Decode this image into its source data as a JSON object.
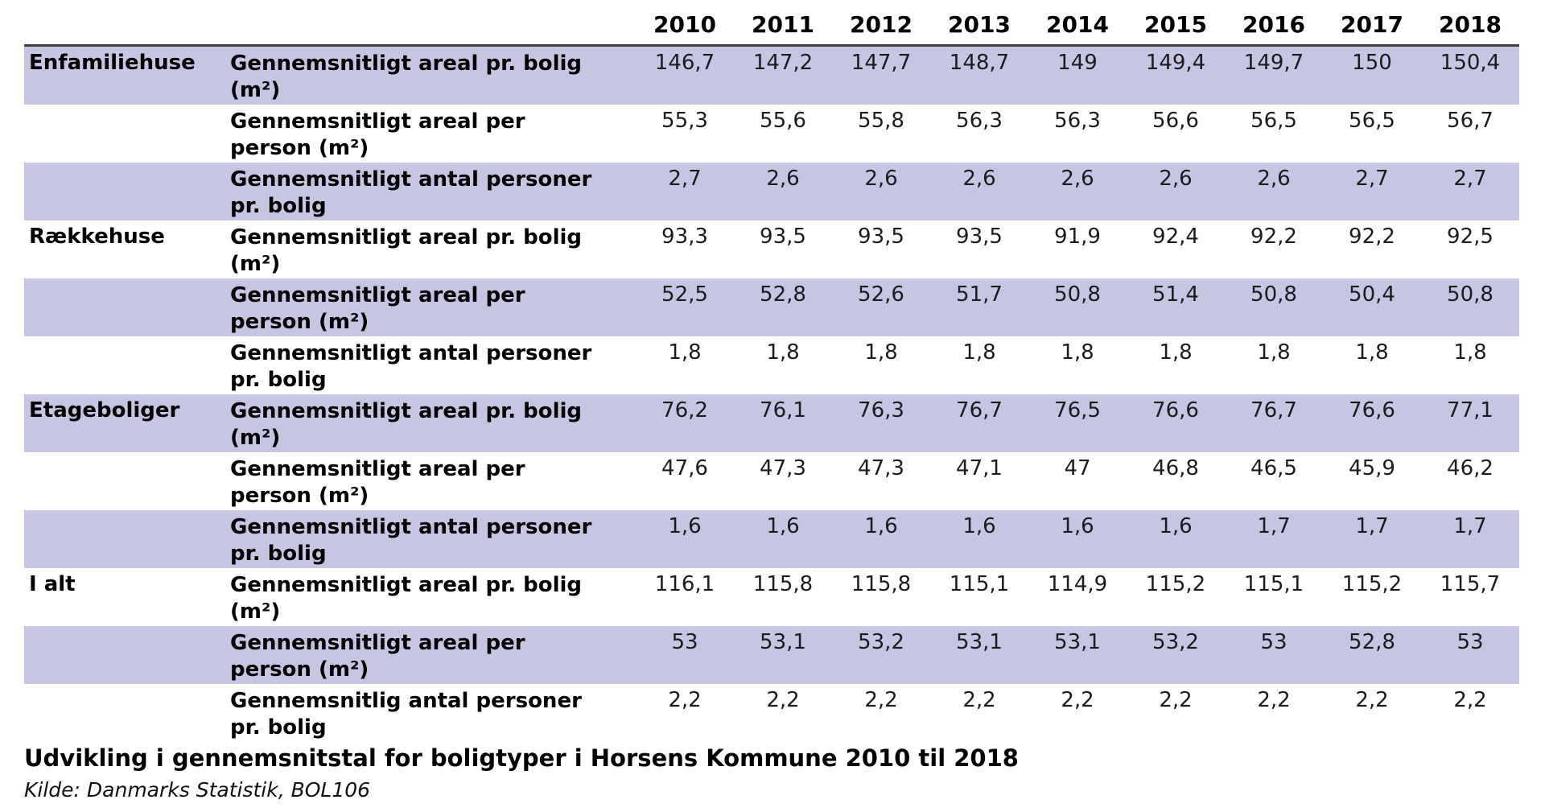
{
  "colors": {
    "row_shade": "#c6c6e2",
    "header_rule": "#3f3f3f",
    "text": "#000000",
    "background": "#ffffff"
  },
  "table": {
    "year_headers": [
      "2010",
      "2011",
      "2012",
      "2013",
      "2014",
      "2015",
      "2016",
      "2017",
      "2018"
    ],
    "rows": [
      {
        "group": "Enfamiliehuse",
        "label_lines": [
          "Gennemsnitligt areal pr. bolig",
          "(m²)"
        ],
        "shaded": true,
        "values": [
          "146,7",
          "147,2",
          "147,7",
          "148,7",
          "149",
          "149,4",
          "149,7",
          "150",
          "150,4"
        ]
      },
      {
        "group": "",
        "label_lines": [
          "Gennemsnitligt areal per",
          "person (m²)"
        ],
        "shaded": false,
        "values": [
          "55,3",
          "55,6",
          "55,8",
          "56,3",
          "56,3",
          "56,6",
          "56,5",
          "56,5",
          "56,7"
        ]
      },
      {
        "group": "",
        "label_lines": [
          "Gennemsnitligt antal personer",
          "pr. bolig"
        ],
        "shaded": true,
        "values": [
          "2,7",
          "2,6",
          "2,6",
          "2,6",
          "2,6",
          "2,6",
          "2,6",
          "2,7",
          "2,7"
        ]
      },
      {
        "group": "Rækkehuse",
        "label_lines": [
          "Gennemsnitligt areal pr. bolig",
          "(m²)"
        ],
        "shaded": false,
        "values": [
          "93,3",
          "93,5",
          "93,5",
          "93,5",
          "91,9",
          "92,4",
          "92,2",
          "92,2",
          "92,5"
        ]
      },
      {
        "group": "",
        "label_lines": [
          "Gennemsnitligt areal per",
          "person (m²)"
        ],
        "shaded": true,
        "values": [
          "52,5",
          "52,8",
          "52,6",
          "51,7",
          "50,8",
          "51,4",
          "50,8",
          "50,4",
          "50,8"
        ]
      },
      {
        "group": "",
        "label_lines": [
          "Gennemsnitligt antal personer",
          "pr. bolig"
        ],
        "shaded": false,
        "values": [
          "1,8",
          "1,8",
          "1,8",
          "1,8",
          "1,8",
          "1,8",
          "1,8",
          "1,8",
          "1,8"
        ]
      },
      {
        "group": "Etageboliger",
        "label_lines": [
          "Gennemsnitligt areal pr. bolig",
          "(m²)"
        ],
        "shaded": true,
        "values": [
          "76,2",
          "76,1",
          "76,3",
          "76,7",
          "76,5",
          "76,6",
          "76,7",
          "76,6",
          "77,1"
        ]
      },
      {
        "group": "",
        "label_lines": [
          "Gennemsnitligt areal per",
          "person (m²)"
        ],
        "shaded": false,
        "values": [
          "47,6",
          "47,3",
          "47,3",
          "47,1",
          "47",
          "46,8",
          "46,5",
          "45,9",
          "46,2"
        ]
      },
      {
        "group": "",
        "label_lines": [
          "Gennemsnitligt antal personer",
          "pr. bolig"
        ],
        "shaded": true,
        "values": [
          "1,6",
          "1,6",
          "1,6",
          "1,6",
          "1,6",
          "1,6",
          "1,7",
          "1,7",
          "1,7"
        ]
      },
      {
        "group": "I alt",
        "label_lines": [
          "Gennemsnitligt areal pr. bolig",
          "(m²)"
        ],
        "shaded": false,
        "values": [
          "116,1",
          "115,8",
          "115,8",
          "115,1",
          "114,9",
          "115,2",
          "115,1",
          "115,2",
          "115,7"
        ]
      },
      {
        "group": "",
        "label_lines": [
          "Gennemsnitligt areal per",
          "person (m²)"
        ],
        "shaded": true,
        "values": [
          "53",
          "53,1",
          "53,2",
          "53,1",
          "53,1",
          "53,2",
          "53",
          "52,8",
          "53"
        ]
      },
      {
        "group": "",
        "label_lines": [
          "Gennemsnitlig antal personer",
          "pr. bolig"
        ],
        "shaded": false,
        "values": [
          "2,2",
          "2,2",
          "2,2",
          "2,2",
          "2,2",
          "2,2",
          "2,2",
          "2,2",
          "2,2"
        ]
      }
    ]
  },
  "caption": {
    "title": "Udvikling i gennemsnitstal for boligtyper i Horsens Kommune 2010 til 2018",
    "source": "Kilde: Danmarks Statistik, BOL106"
  },
  "chart_data": {
    "type": "table",
    "title": "Udvikling i gennemsnitstal for boligtyper i Horsens Kommune 2010 til 2018",
    "source": "Kilde: Danmarks Statistik, BOL106",
    "x": [
      2010,
      2011,
      2012,
      2013,
      2014,
      2015,
      2016,
      2017,
      2018
    ],
    "series": [
      {
        "name": "Enfamiliehuse – Gennemsnitligt areal pr. bolig (m²)",
        "values": [
          146.7,
          147.2,
          147.7,
          148.7,
          149,
          149.4,
          149.7,
          150,
          150.4
        ]
      },
      {
        "name": "Enfamiliehuse – Gennemsnitligt areal per person (m²)",
        "values": [
          55.3,
          55.6,
          55.8,
          56.3,
          56.3,
          56.6,
          56.5,
          56.5,
          56.7
        ]
      },
      {
        "name": "Enfamiliehuse – Gennemsnitligt antal personer pr. bolig",
        "values": [
          2.7,
          2.6,
          2.6,
          2.6,
          2.6,
          2.6,
          2.6,
          2.7,
          2.7
        ]
      },
      {
        "name": "Rækkehuse – Gennemsnitligt areal pr. bolig (m²)",
        "values": [
          93.3,
          93.5,
          93.5,
          93.5,
          91.9,
          92.4,
          92.2,
          92.2,
          92.5
        ]
      },
      {
        "name": "Rækkehuse – Gennemsnitligt areal per person (m²)",
        "values": [
          52.5,
          52.8,
          52.6,
          51.7,
          50.8,
          51.4,
          50.8,
          50.4,
          50.8
        ]
      },
      {
        "name": "Rækkehuse – Gennemsnitligt antal personer pr. bolig",
        "values": [
          1.8,
          1.8,
          1.8,
          1.8,
          1.8,
          1.8,
          1.8,
          1.8,
          1.8
        ]
      },
      {
        "name": "Etageboliger – Gennemsnitligt areal pr. bolig (m²)",
        "values": [
          76.2,
          76.1,
          76.3,
          76.7,
          76.5,
          76.6,
          76.7,
          76.6,
          77.1
        ]
      },
      {
        "name": "Etageboliger – Gennemsnitligt areal per person (m²)",
        "values": [
          47.6,
          47.3,
          47.3,
          47.1,
          47,
          46.8,
          46.5,
          45.9,
          46.2
        ]
      },
      {
        "name": "Etageboliger – Gennemsnitligt antal personer pr. bolig",
        "values": [
          1.6,
          1.6,
          1.6,
          1.6,
          1.6,
          1.6,
          1.7,
          1.7,
          1.7
        ]
      },
      {
        "name": "I alt – Gennemsnitligt areal pr. bolig (m²)",
        "values": [
          116.1,
          115.8,
          115.8,
          115.1,
          114.9,
          115.2,
          115.1,
          115.2,
          115.7
        ]
      },
      {
        "name": "I alt – Gennemsnitligt areal per person (m²)",
        "values": [
          53,
          53.1,
          53.2,
          53.1,
          53.1,
          53.2,
          53,
          52.8,
          53
        ]
      },
      {
        "name": "I alt – Gennemsnitlig antal personer pr. bolig",
        "values": [
          2.2,
          2.2,
          2.2,
          2.2,
          2.2,
          2.2,
          2.2,
          2.2,
          2.2
        ]
      }
    ],
    "layout": {
      "grid": false,
      "legend": "none",
      "row_striping": "alternating lavender/white"
    }
  }
}
